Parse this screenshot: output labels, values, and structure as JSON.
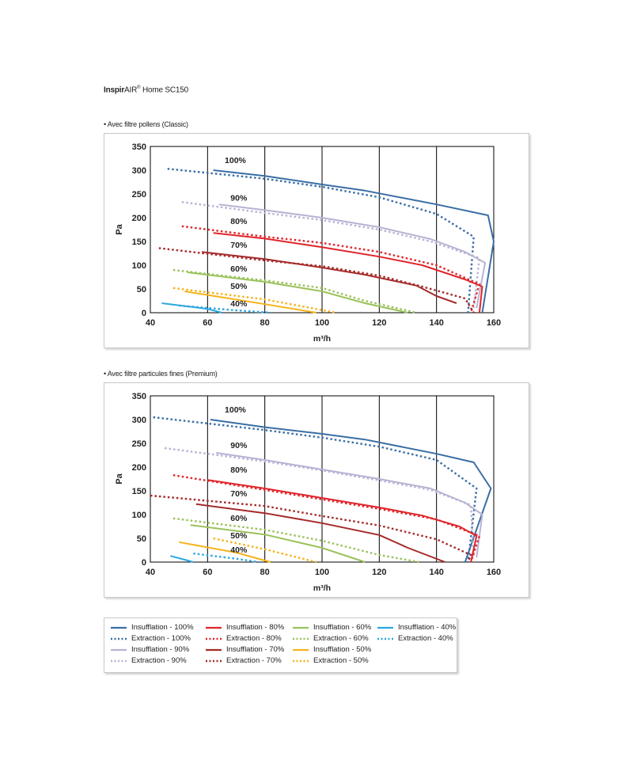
{
  "header": {
    "brand_bold": "Inspir",
    "brand_rest": "AIR",
    "reg_mark": "®",
    "model": "Home SC150"
  },
  "sections": [
    {
      "label": "• Avec filtre pollens (Classic)"
    },
    {
      "label": "• Avec filtre particules fines (Premium)"
    }
  ],
  "colors": {
    "100%": "#3a6ea5",
    "90%": "#b8b2d4",
    "80%": "#e0252b",
    "70%": "#a52a2a",
    "60%": "#9ac25b",
    "50%": "#f5b31b",
    "40%": "#2ca7e0"
  },
  "chart_data": [
    {
      "type": "line",
      "title": "Avec filtre pollens (Classic)",
      "xlabel": "m³/h",
      "ylabel": "Pa",
      "xlim": [
        40,
        160
      ],
      "ylim": [
        0,
        350
      ],
      "xticks": [
        40,
        60,
        80,
        100,
        120,
        140,
        160
      ],
      "yticks": [
        0,
        50,
        100,
        150,
        200,
        250,
        300,
        350
      ],
      "vertical_grid": true,
      "annotations": [
        {
          "text": "100%",
          "x": 66,
          "y": 315
        },
        {
          "text": "90%",
          "x": 68,
          "y": 236
        },
        {
          "text": "80%",
          "x": 68,
          "y": 187
        },
        {
          "text": "70%",
          "x": 68,
          "y": 137
        },
        {
          "text": "60%",
          "x": 68,
          "y": 87
        },
        {
          "text": "50%",
          "x": 68,
          "y": 50
        },
        {
          "text": "40%",
          "x": 68,
          "y": 13
        }
      ],
      "series": [
        {
          "name": "Insufflation - 100%",
          "key": "100%",
          "dashed": false,
          "points": [
            [
              62,
              300
            ],
            [
              80,
              288
            ],
            [
              100,
              270
            ],
            [
              115,
              257
            ],
            [
              140,
              228
            ],
            [
              158,
              205
            ],
            [
              160,
              150
            ],
            [
              156,
              0
            ]
          ]
        },
        {
          "name": "Extraction - 100%",
          "key": "100%",
          "dashed": true,
          "points": [
            [
              46,
              303
            ],
            [
              80,
              282
            ],
            [
              100,
              265
            ],
            [
              120,
              243
            ],
            [
              140,
              208
            ],
            [
              153,
              160
            ],
            [
              151,
              0
            ]
          ]
        },
        {
          "name": "Insufflation - 90%",
          "key": "90%",
          "dashed": false,
          "points": [
            [
              64,
              228
            ],
            [
              80,
              216
            ],
            [
              100,
              200
            ],
            [
              120,
              180
            ],
            [
              138,
              155
            ],
            [
              150,
              128
            ],
            [
              157,
              105
            ],
            [
              154,
              10
            ]
          ]
        },
        {
          "name": "Extraction - 90%",
          "key": "90%",
          "dashed": true,
          "points": [
            [
              51,
              233
            ],
            [
              80,
              210
            ],
            [
              100,
              195
            ],
            [
              120,
              175
            ],
            [
              138,
              150
            ],
            [
              155,
              115
            ],
            [
              153,
              10
            ]
          ]
        },
        {
          "name": "Insufflation - 80%",
          "key": "80%",
          "dashed": false,
          "points": [
            [
              62,
              168
            ],
            [
              80,
              156
            ],
            [
              100,
              138
            ],
            [
              120,
              118
            ],
            [
              135,
              100
            ],
            [
              150,
              70
            ],
            [
              156,
              55
            ],
            [
              155,
              0
            ]
          ]
        },
        {
          "name": "Extraction - 80%",
          "key": "80%",
          "dashed": true,
          "points": [
            [
              51,
              182
            ],
            [
              80,
              160
            ],
            [
              100,
              147
            ],
            [
              120,
              128
            ],
            [
              140,
              100
            ],
            [
              155,
              60
            ],
            [
              152,
              0
            ]
          ]
        },
        {
          "name": "Insufflation - 70%",
          "key": "70%",
          "dashed": false,
          "points": [
            [
              58,
              128
            ],
            [
              80,
              113
            ],
            [
              100,
              95
            ],
            [
              115,
              80
            ],
            [
              133,
              57
            ],
            [
              140,
              35
            ],
            [
              147,
              20
            ]
          ]
        },
        {
          "name": "Extraction - 70%",
          "key": "70%",
          "dashed": true,
          "points": [
            [
              43,
              136
            ],
            [
              80,
              110
            ],
            [
              100,
              98
            ],
            [
              120,
              78
            ],
            [
              135,
              55
            ],
            [
              150,
              30
            ],
            [
              153,
              0
            ]
          ]
        },
        {
          "name": "Insufflation - 60%",
          "key": "60%",
          "dashed": false,
          "points": [
            [
              53,
              85
            ],
            [
              80,
              65
            ],
            [
              100,
              45
            ],
            [
              115,
              20
            ],
            [
              130,
              0
            ]
          ]
        },
        {
          "name": "Extraction - 60%",
          "key": "60%",
          "dashed": true,
          "points": [
            [
              48,
              90
            ],
            [
              80,
              68
            ],
            [
              100,
              52
            ],
            [
              115,
              25
            ],
            [
              133,
              0
            ]
          ]
        },
        {
          "name": "Insufflation - 50%",
          "key": "50%",
          "dashed": false,
          "points": [
            [
              52,
              45
            ],
            [
              80,
              18
            ],
            [
              98,
              0
            ]
          ]
        },
        {
          "name": "Extraction - 50%",
          "key": "50%",
          "dashed": true,
          "points": [
            [
              48,
              52
            ],
            [
              80,
              28
            ],
            [
              105,
              0
            ]
          ]
        },
        {
          "name": "Insufflation - 40%",
          "key": "40%",
          "dashed": false,
          "points": [
            [
              44,
              20
            ],
            [
              60,
              8
            ],
            [
              65,
              0
            ]
          ]
        },
        {
          "name": "Extraction - 40%",
          "key": "40%",
          "dashed": true,
          "points": [
            [
              50,
              15
            ],
            [
              70,
              5
            ],
            [
              82,
              0
            ]
          ]
        }
      ]
    },
    {
      "type": "line",
      "title": "Avec filtre particules fines (Premium)",
      "xlabel": "m³/h",
      "ylabel": "Pa",
      "xlim": [
        40,
        160
      ],
      "ylim": [
        0,
        350
      ],
      "xticks": [
        40,
        60,
        80,
        100,
        120,
        140,
        160
      ],
      "yticks": [
        0,
        50,
        100,
        150,
        200,
        250,
        300,
        350
      ],
      "vertical_grid": true,
      "annotations": [
        {
          "text": "100%",
          "x": 66,
          "y": 315
        },
        {
          "text": "90%",
          "x": 68,
          "y": 240
        },
        {
          "text": "80%",
          "x": 68,
          "y": 188
        },
        {
          "text": "70%",
          "x": 68,
          "y": 138
        },
        {
          "text": "60%",
          "x": 68,
          "y": 87
        },
        {
          "text": "50%",
          "x": 68,
          "y": 50
        },
        {
          "text": "40%",
          "x": 68,
          "y": 20
        }
      ],
      "series": [
        {
          "name": "Insufflation - 100%",
          "key": "100%",
          "dashed": false,
          "points": [
            [
              61,
              300
            ],
            [
              80,
              284
            ],
            [
              100,
              270
            ],
            [
              115,
              258
            ],
            [
              140,
              228
            ],
            [
              153,
              210
            ],
            [
              159,
              155
            ],
            [
              150,
              0
            ]
          ]
        },
        {
          "name": "Extraction - 100%",
          "key": "100%",
          "dashed": true,
          "points": [
            [
              41,
              305
            ],
            [
              80,
              278
            ],
            [
              100,
              262
            ],
            [
              120,
              243
            ],
            [
              140,
              215
            ],
            [
              154,
              155
            ],
            [
              151,
              0
            ]
          ]
        },
        {
          "name": "Insufflation - 90%",
          "key": "90%",
          "dashed": false,
          "points": [
            [
              63,
              230
            ],
            [
              80,
              215
            ],
            [
              100,
              195
            ],
            [
              120,
              175
            ],
            [
              138,
              155
            ],
            [
              150,
              125
            ],
            [
              156,
              100
            ],
            [
              154,
              10
            ]
          ]
        },
        {
          "name": "Extraction - 90%",
          "key": "90%",
          "dashed": true,
          "points": [
            [
              45,
              240
            ],
            [
              80,
              212
            ],
            [
              100,
              193
            ],
            [
              120,
              172
            ],
            [
              138,
              152
            ],
            [
              152,
              120
            ],
            [
              153,
              10
            ]
          ]
        },
        {
          "name": "Insufflation - 80%",
          "key": "80%",
          "dashed": false,
          "points": [
            [
              60,
              173
            ],
            [
              80,
              155
            ],
            [
              100,
              135
            ],
            [
              120,
              115
            ],
            [
              135,
              98
            ],
            [
              148,
              75
            ],
            [
              154,
              55
            ],
            [
              152,
              0
            ]
          ]
        },
        {
          "name": "Extraction - 80%",
          "key": "80%",
          "dashed": true,
          "points": [
            [
              48,
              183
            ],
            [
              80,
              152
            ],
            [
              100,
              132
            ],
            [
              120,
              112
            ],
            [
              140,
              90
            ],
            [
              155,
              55
            ],
            [
              152,
              0
            ]
          ]
        },
        {
          "name": "Insufflation - 70%",
          "key": "70%",
          "dashed": false,
          "points": [
            [
              56,
              122
            ],
            [
              80,
              103
            ],
            [
              100,
              82
            ],
            [
              120,
              57
            ],
            [
              130,
              30
            ],
            [
              143,
              0
            ]
          ]
        },
        {
          "name": "Extraction - 70%",
          "key": "70%",
          "dashed": true,
          "points": [
            [
              40,
              140
            ],
            [
              80,
              118
            ],
            [
              100,
              97
            ],
            [
              120,
              77
            ],
            [
              140,
              48
            ],
            [
              152,
              15
            ],
            [
              151,
              0
            ]
          ]
        },
        {
          "name": "Insufflation - 60%",
          "key": "60%",
          "dashed": false,
          "points": [
            [
              54,
              78
            ],
            [
              80,
              58
            ],
            [
              100,
              30
            ],
            [
              115,
              0
            ]
          ]
        },
        {
          "name": "Extraction - 60%",
          "key": "60%",
          "dashed": true,
          "points": [
            [
              48,
              92
            ],
            [
              80,
              68
            ],
            [
              100,
              45
            ],
            [
              120,
              15
            ],
            [
              134,
              0
            ]
          ]
        },
        {
          "name": "Insufflation - 50%",
          "key": "50%",
          "dashed": false,
          "points": [
            [
              50,
              42
            ],
            [
              70,
              20
            ],
            [
              82,
              0
            ]
          ]
        },
        {
          "name": "Extraction - 50%",
          "key": "50%",
          "dashed": true,
          "points": [
            [
              62,
              50
            ],
            [
              80,
              27
            ],
            [
              98,
              0
            ]
          ]
        },
        {
          "name": "Insufflation - 40%",
          "key": "40%",
          "dashed": false,
          "points": [
            [
              47,
              13
            ],
            [
              52,
              5
            ],
            [
              55,
              0
            ]
          ]
        },
        {
          "name": "Extraction - 40%",
          "key": "40%",
          "dashed": true,
          "points": [
            [
              55,
              18
            ],
            [
              70,
              7
            ],
            [
              78,
              0
            ]
          ]
        }
      ]
    }
  ],
  "legend": [
    {
      "label": "Insufflation - 100%",
      "key": "100%",
      "dashed": false
    },
    {
      "label": "Extraction - 100%",
      "key": "100%",
      "dashed": true
    },
    {
      "label": "Insufflation - 90%",
      "key": "90%",
      "dashed": false
    },
    {
      "label": "Extraction - 90%",
      "key": "90%",
      "dashed": true
    },
    {
      "label": "Insufflation - 80%",
      "key": "80%",
      "dashed": false
    },
    {
      "label": "Extraction - 80%",
      "key": "80%",
      "dashed": true
    },
    {
      "label": "Insufflation - 70%",
      "key": "70%",
      "dashed": false
    },
    {
      "label": "Extraction - 70%",
      "key": "70%",
      "dashed": true
    },
    {
      "label": "Insufflation - 60%",
      "key": "60%",
      "dashed": false
    },
    {
      "label": "Extraction - 60%",
      "key": "60%",
      "dashed": true
    },
    {
      "label": "Insufflation - 50%",
      "key": "50%",
      "dashed": false
    },
    {
      "label": "Extraction - 50%",
      "key": "50%",
      "dashed": true
    },
    {
      "label": "Insufflation - 40%",
      "key": "40%",
      "dashed": false
    },
    {
      "label": "Extraction - 40%",
      "key": "40%",
      "dashed": true
    }
  ]
}
